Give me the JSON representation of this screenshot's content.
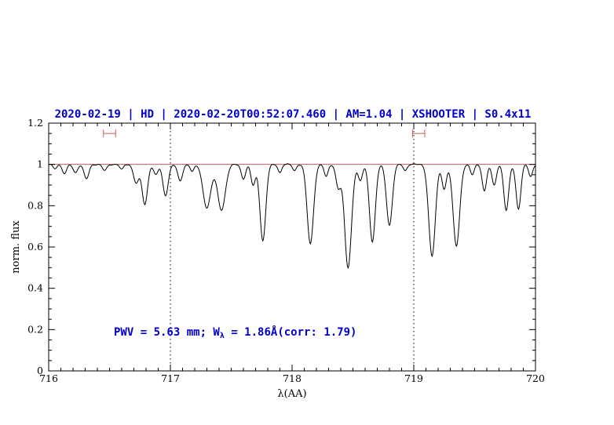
{
  "figure": {
    "background": "#ffffff",
    "colors": {
      "accent_blue": "#0000cd",
      "reference_red": "#cf5b56",
      "marker_red": "#cf5b56",
      "spectrum_black": "#000000"
    },
    "annotation": {
      "prefix": "PWV = 5.63 mm; W",
      "sub": "λ",
      "suffix": " = 1.86Å(corr: 1.79)"
    }
  },
  "chart_data": {
    "type": "line",
    "title": "2020-02-19 | HD | 2020-02-20T00:52:07.460 | AM=1.04 | XSHOOTER | S0.4x11",
    "xlabel": "λ(AA)",
    "ylabel": "norm. flux",
    "xlim": [
      716,
      720
    ],
    "ylim": [
      0,
      1.2
    ],
    "x_ticks": [
      716,
      717,
      718,
      719,
      720
    ],
    "x_tick_labels": [
      "716",
      "717",
      "718",
      "719",
      "720"
    ],
    "x_minor_step": 0.1,
    "y_ticks": [
      0,
      0.2,
      0.4,
      0.6,
      0.8,
      1,
      1.2
    ],
    "y_tick_labels": [
      "0",
      "0.2",
      "0.4",
      "0.6",
      "0.8",
      "1",
      "1.2"
    ],
    "y_minor_step": 0.05,
    "grid": false,
    "legend": null,
    "continuum_level": 1.0,
    "continuum_noise": 0.003,
    "sample_step": 0.005,
    "reference_hline_y": 1.0,
    "dotted_vlines": [
      717,
      719
    ],
    "range_markers": [
      {
        "x_start": 716.45,
        "x_end": 716.55,
        "y": 1.15
      },
      {
        "x_start": 718.99,
        "x_end": 719.09,
        "y": 1.15
      }
    ],
    "pwv_mm": 5.63,
    "equivalent_width_A": 1.86,
    "ew_corr": 1.79,
    "absorption_lines_format": "[center_AA, depth_normflux, sigma_AA]",
    "absorption_lines": [
      [
        716.05,
        0.02,
        0.015
      ],
      [
        716.13,
        0.045,
        0.018
      ],
      [
        716.22,
        0.04,
        0.018
      ],
      [
        716.31,
        0.07,
        0.02
      ],
      [
        716.46,
        0.03,
        0.018
      ],
      [
        716.6,
        0.025,
        0.015
      ],
      [
        716.72,
        0.09,
        0.022
      ],
      [
        716.79,
        0.195,
        0.022
      ],
      [
        716.88,
        0.05,
        0.018
      ],
      [
        716.96,
        0.15,
        0.022
      ],
      [
        717.08,
        0.08,
        0.02
      ],
      [
        717.18,
        0.035,
        0.015
      ],
      [
        717.3,
        0.21,
        0.032
      ],
      [
        717.42,
        0.22,
        0.032
      ],
      [
        717.6,
        0.07,
        0.018
      ],
      [
        717.68,
        0.1,
        0.018
      ],
      [
        717.76,
        0.37,
        0.024
      ],
      [
        717.9,
        0.04,
        0.015
      ],
      [
        718.02,
        0.03,
        0.015
      ],
      [
        718.15,
        0.385,
        0.026
      ],
      [
        718.28,
        0.06,
        0.016
      ],
      [
        718.38,
        0.11,
        0.02
      ],
      [
        718.46,
        0.5,
        0.028
      ],
      [
        718.56,
        0.08,
        0.018
      ],
      [
        718.66,
        0.375,
        0.024
      ],
      [
        718.8,
        0.295,
        0.024
      ],
      [
        718.93,
        0.03,
        0.015
      ],
      [
        719.15,
        0.445,
        0.027
      ],
      [
        719.25,
        0.12,
        0.018
      ],
      [
        719.35,
        0.395,
        0.027
      ],
      [
        719.48,
        0.05,
        0.016
      ],
      [
        719.58,
        0.13,
        0.018
      ],
      [
        719.66,
        0.1,
        0.018
      ],
      [
        719.76,
        0.225,
        0.02
      ],
      [
        719.86,
        0.215,
        0.02
      ],
      [
        719.96,
        0.06,
        0.016
      ]
    ]
  }
}
